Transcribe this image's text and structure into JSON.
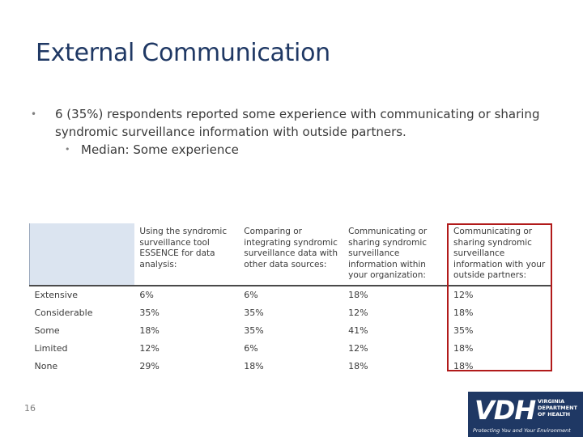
{
  "slide": {
    "title": "External Communication",
    "bullet1": "6 (35%) respondents reported some experience with communicating or sharing syndromic surveillance information with outside partners.",
    "bullet2": "Median: Some experience",
    "page_number": "16"
  },
  "table": {
    "headers": [
      "",
      "Using the syndromic surveillance tool ESSENCE for data analysis:",
      "Comparing or integrating syndromic surveillance data with other data sources:",
      "Communicating or sharing syndromic surveillance information within your organization:",
      "Communicating or sharing syndromic surveillance information with your outside partners:"
    ],
    "rows": [
      [
        "Extensive",
        "6%",
        "6%",
        "18%",
        "12%"
      ],
      [
        "Considerable",
        "35%",
        "35%",
        "12%",
        "18%"
      ],
      [
        "Some",
        "18%",
        "35%",
        "41%",
        "35%"
      ],
      [
        "Limited",
        "12%",
        "6%",
        "12%",
        "18%"
      ],
      [
        "None",
        "29%",
        "18%",
        "18%",
        "18%"
      ]
    ],
    "highlight_color": "#b11a1a"
  },
  "logo": {
    "mark": "VDH",
    "line1": "VIRGINIA",
    "line2": "DEPARTMENT",
    "line3": "OF HEALTH",
    "tagline": "Protecting You and Your Environment"
  },
  "colors": {
    "title": "#1f3864",
    "logo_bg": "#1f3864",
    "header_fill": "#dbe4f0"
  }
}
